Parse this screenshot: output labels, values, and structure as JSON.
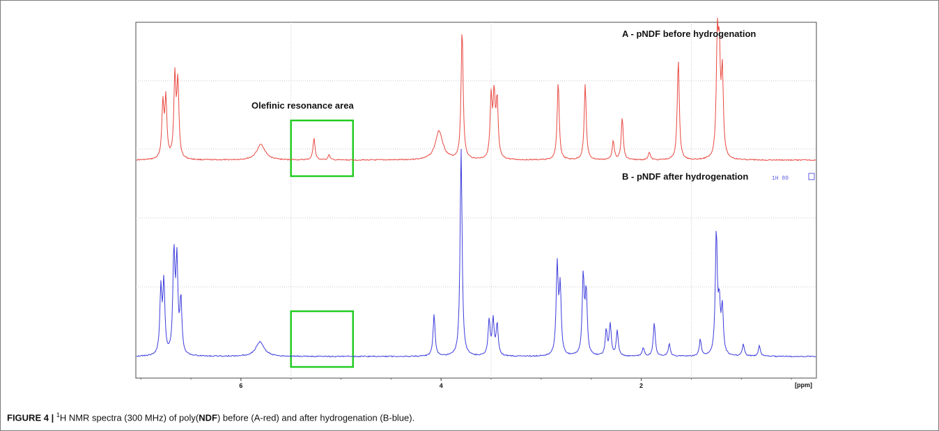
{
  "caption": {
    "label": "FIGURE 4 |",
    "superscript": "1",
    "text_1": "H NMR spectra (300 MHz) of poly(",
    "bold": "NDF",
    "text_2": ") before (A-red) and after hydrogenation (B-blue)."
  },
  "chart_data": {
    "type": "line",
    "title": "",
    "xlabel": "[ppm]",
    "ylabel": "",
    "xlim": [
      7.05,
      0.25
    ],
    "x_reversed": true,
    "x_ticks": [
      6,
      4,
      2
    ],
    "x_tick_labels": [
      "6",
      "4",
      "2"
    ],
    "grid": true,
    "colors": {
      "A": "#e8473f",
      "B": "#3b3bdc",
      "box": "#22cc22",
      "grid": "#c9c9c9"
    },
    "series": [
      {
        "name": "A - pNDF before hydrogenation",
        "color": "#e8473f",
        "peaks": [
          {
            "ppm": 6.78,
            "height": 0.42
          },
          {
            "ppm": 6.75,
            "height": 0.45
          },
          {
            "ppm": 6.66,
            "height": 0.62
          },
          {
            "ppm": 6.63,
            "height": 0.58
          },
          {
            "ppm": 5.8,
            "height": 0.12
          },
          {
            "ppm": 5.27,
            "height": 0.17
          },
          {
            "ppm": 5.12,
            "height": 0.04
          },
          {
            "ppm": 4.02,
            "height": 0.22
          },
          {
            "ppm": 3.79,
            "height": 1.0
          },
          {
            "ppm": 3.5,
            "height": 0.46
          },
          {
            "ppm": 3.47,
            "height": 0.46
          },
          {
            "ppm": 3.44,
            "height": 0.44
          },
          {
            "ppm": 2.83,
            "height": 0.6
          },
          {
            "ppm": 2.56,
            "height": 0.58
          },
          {
            "ppm": 2.28,
            "height": 0.15
          },
          {
            "ppm": 2.19,
            "height": 0.32
          },
          {
            "ppm": 1.92,
            "height": 0.06
          },
          {
            "ppm": 1.63,
            "height": 0.77
          },
          {
            "ppm": 1.24,
            "height": 0.85
          },
          {
            "ppm": 1.22,
            "height": 0.72
          },
          {
            "ppm": 1.19,
            "height": 0.63
          }
        ]
      },
      {
        "name": "B - pNDF after hydrogenation",
        "color": "#3b3bdc",
        "peaks": [
          {
            "ppm": 6.8,
            "height": 0.31
          },
          {
            "ppm": 6.77,
            "height": 0.34
          },
          {
            "ppm": 6.67,
            "height": 0.48
          },
          {
            "ppm": 6.64,
            "height": 0.44
          },
          {
            "ppm": 6.6,
            "height": 0.26
          },
          {
            "ppm": 5.81,
            "height": 0.07
          },
          {
            "ppm": 4.07,
            "height": 0.2
          },
          {
            "ppm": 3.8,
            "height": 1.0
          },
          {
            "ppm": 3.52,
            "height": 0.17
          },
          {
            "ppm": 3.48,
            "height": 0.17
          },
          {
            "ppm": 3.44,
            "height": 0.15
          },
          {
            "ppm": 2.84,
            "height": 0.43
          },
          {
            "ppm": 2.81,
            "height": 0.32
          },
          {
            "ppm": 2.58,
            "height": 0.38
          },
          {
            "ppm": 2.55,
            "height": 0.3
          },
          {
            "ppm": 2.35,
            "height": 0.12
          },
          {
            "ppm": 2.31,
            "height": 0.15
          },
          {
            "ppm": 2.24,
            "height": 0.12
          },
          {
            "ppm": 1.98,
            "height": 0.04
          },
          {
            "ppm": 1.87,
            "height": 0.16
          },
          {
            "ppm": 1.72,
            "height": 0.06
          },
          {
            "ppm": 1.41,
            "height": 0.08
          },
          {
            "ppm": 1.25,
            "height": 0.59
          },
          {
            "ppm": 1.22,
            "height": 0.22
          },
          {
            "ppm": 1.19,
            "height": 0.22
          },
          {
            "ppm": 0.98,
            "height": 0.06
          },
          {
            "ppm": 0.82,
            "height": 0.05
          }
        ]
      }
    ],
    "annotations": {
      "olefinic": "Olefinic resonance area",
      "highlight_ppm_range": [
        5.5,
        4.88
      ],
      "stray_label": "1H 80"
    }
  }
}
